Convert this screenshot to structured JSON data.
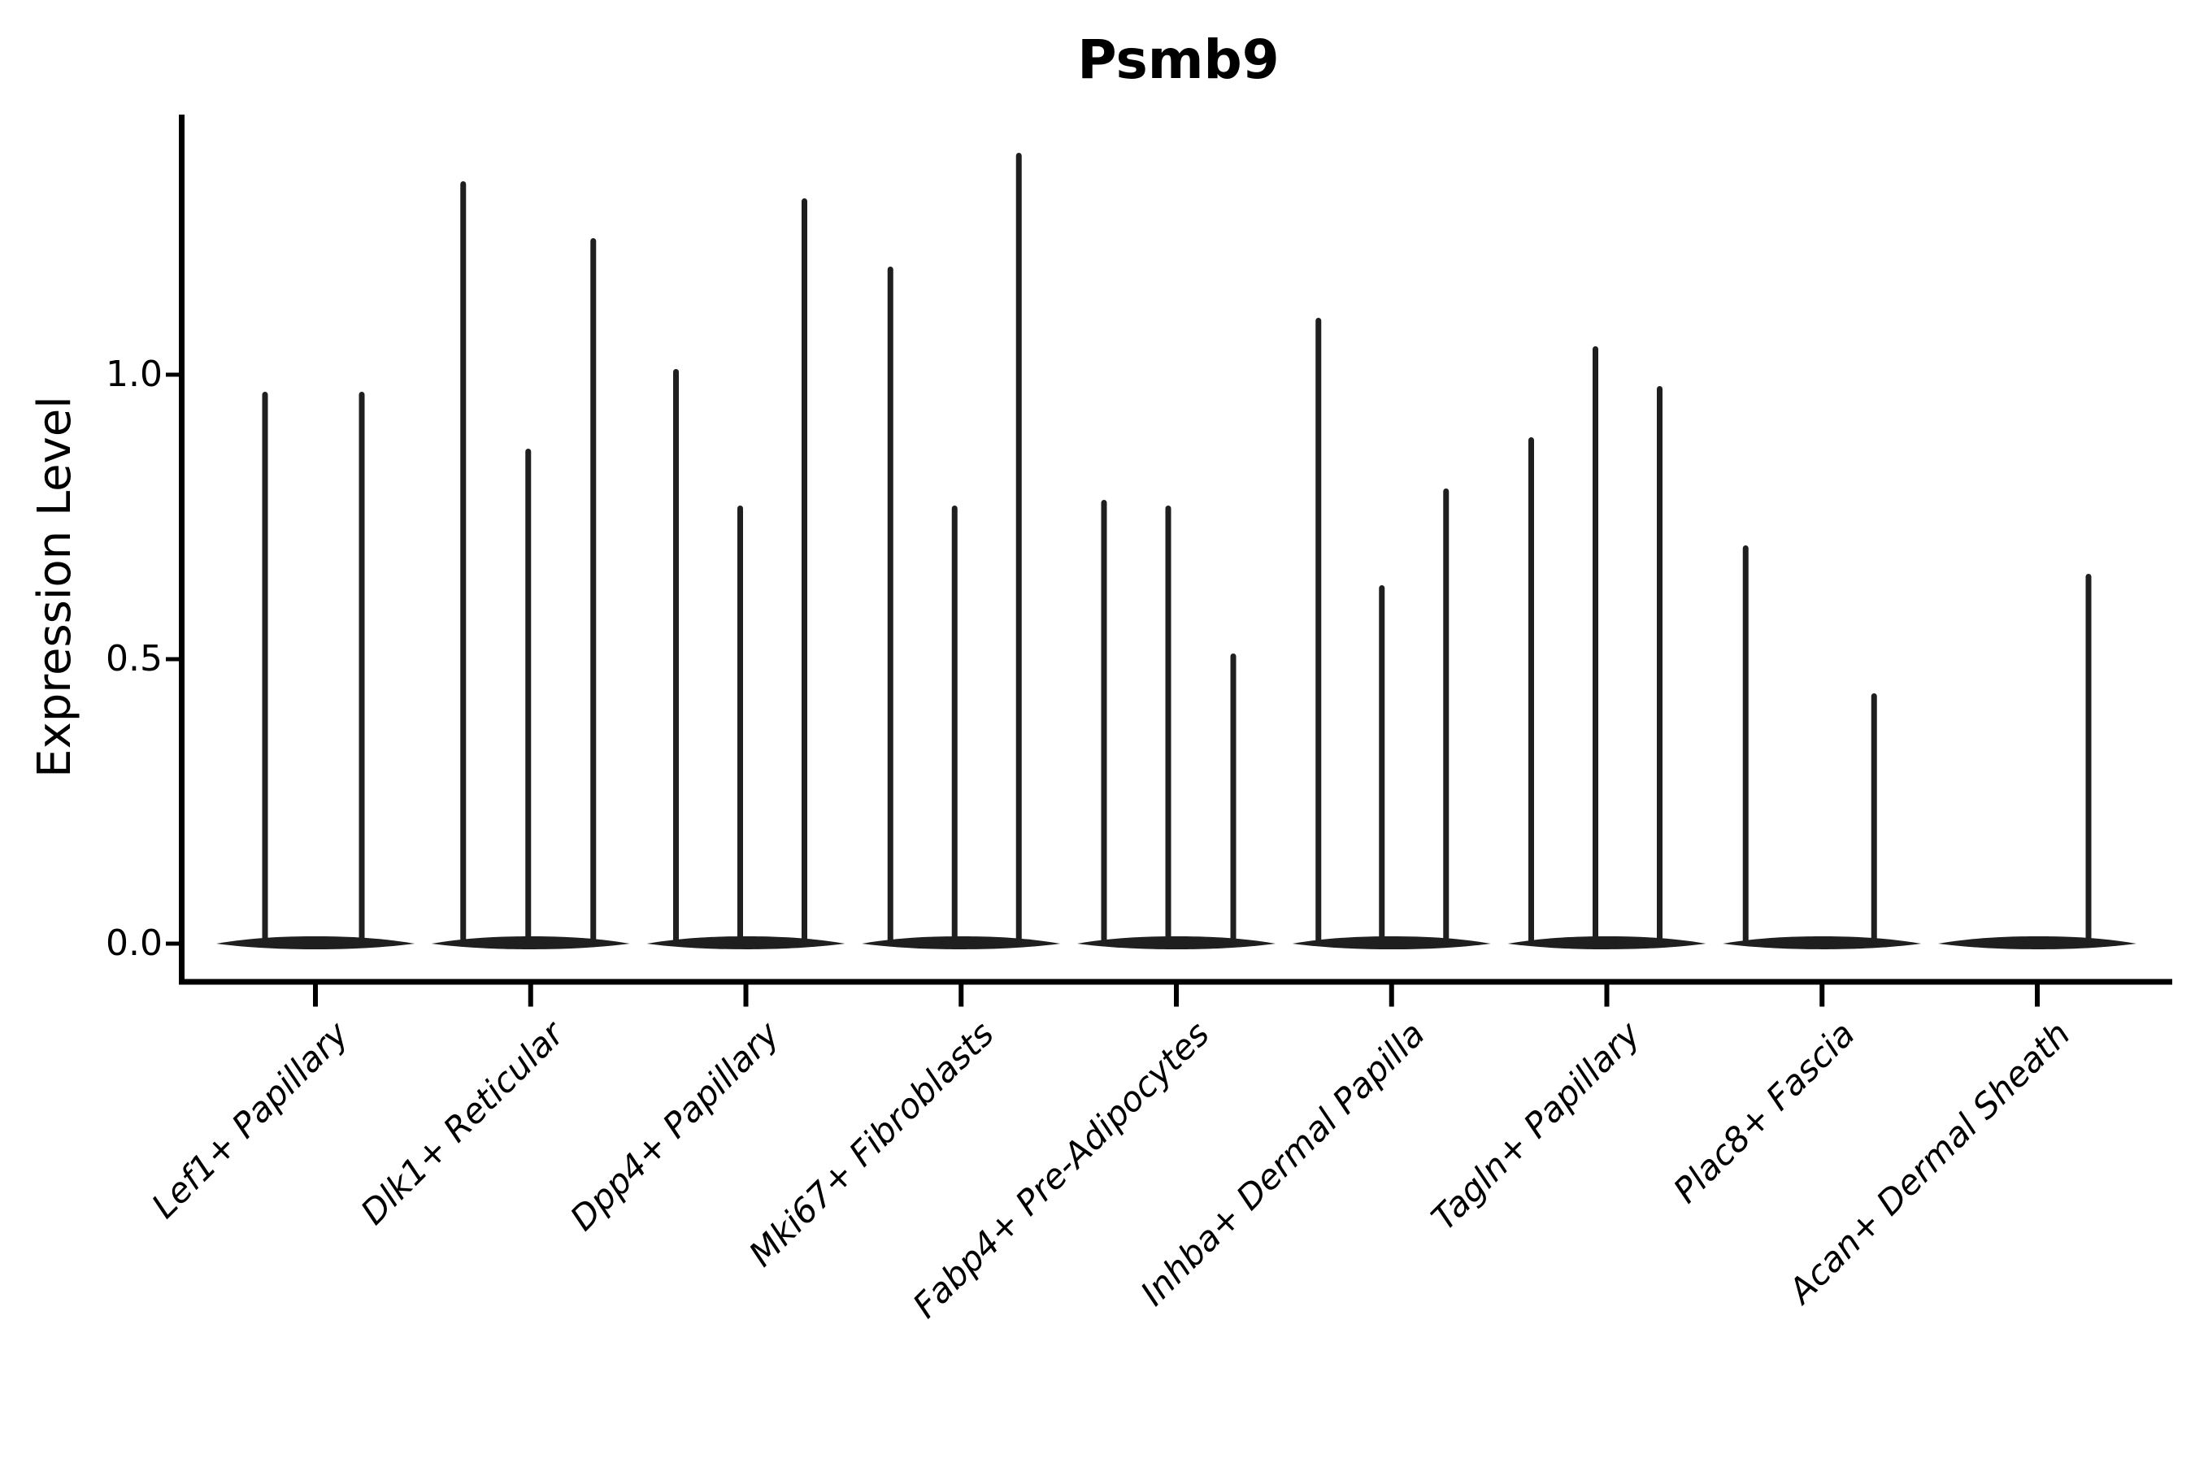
{
  "chart_data": {
    "type": "violin",
    "title": "Psmb9",
    "xlabel": "",
    "ylabel": "Expression Level",
    "yticks": [
      0.0,
      0.5,
      1.0
    ],
    "ylim": [
      0,
      1.45
    ],
    "grid": false,
    "legend": "none",
    "background_color": "#ffffff",
    "axis_color": "#000000",
    "violin_color": "#1f1f1f",
    "categories": [
      "Lef1+ Papillary",
      "Dlk1+ Reticular",
      "Dpp4+ Papillary",
      "Mki67+ Fibroblasts",
      "Fabp4+ Pre-Adipocytes",
      "Inhba+ Dermal Papilla",
      "Tagln+ Papillary",
      "Plac8+ Fascia",
      "Acan+ Dermal Sheath"
    ],
    "groups": [
      {
        "category": "Lef1+ Papillary",
        "violins": [
          {
            "offset": -62,
            "max": 0.97
          },
          {
            "offset": 57,
            "max": 0.97
          }
        ]
      },
      {
        "category": "Dlk1+ Reticular",
        "violins": [
          {
            "offset": -83,
            "max": 1.34
          },
          {
            "offset": -3,
            "max": 0.87
          },
          {
            "offset": 77,
            "max": 1.24
          }
        ]
      },
      {
        "category": "Dpp4+ Papillary",
        "violins": [
          {
            "offset": -86,
            "max": 1.01
          },
          {
            "offset": -7,
            "max": 0.77
          },
          {
            "offset": 72,
            "max": 1.31
          }
        ]
      },
      {
        "category": "Mki67+ Fibroblasts",
        "violins": [
          {
            "offset": -87,
            "max": 1.19
          },
          {
            "offset": -8,
            "max": 0.77
          },
          {
            "offset": 71,
            "max": 1.39
          }
        ]
      },
      {
        "category": "Fabp4+ Pre-Adipocytes",
        "violins": [
          {
            "offset": -89,
            "max": 0.78
          },
          {
            "offset": -10,
            "max": 0.77
          },
          {
            "offset": 70,
            "max": 0.51
          }
        ]
      },
      {
        "category": "Inhba+ Dermal Papilla",
        "violins": [
          {
            "offset": -90,
            "max": 1.1
          },
          {
            "offset": -12,
            "max": 0.63
          },
          {
            "offset": 67,
            "max": 0.8
          }
        ]
      },
      {
        "category": "Tagln+ Papillary",
        "violins": [
          {
            "offset": -93,
            "max": 0.89
          },
          {
            "offset": -14,
            "max": 1.05
          },
          {
            "offset": 65,
            "max": 0.98
          }
        ]
      },
      {
        "category": "Plac8+ Fascia",
        "violins": [
          {
            "offset": -94,
            "max": 0.7
          },
          {
            "offset": 64,
            "max": 0.44
          }
        ]
      },
      {
        "category": "Acan+ Dermal Sheath",
        "violins": [
          {
            "offset": 63,
            "max": 0.65
          }
        ]
      }
    ]
  }
}
